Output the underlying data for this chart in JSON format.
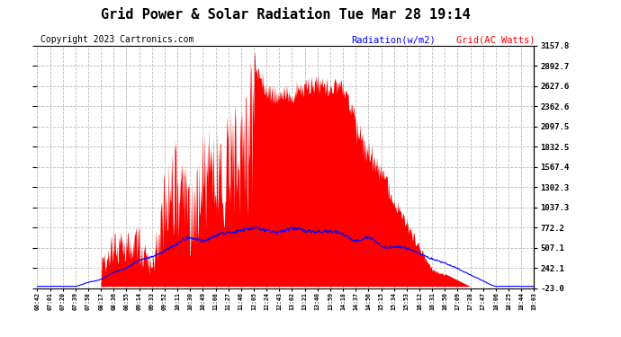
{
  "title": "Grid Power & Solar Radiation Tue Mar 28 19:14",
  "copyright": "Copyright 2023 Cartronics.com",
  "legend_radiation": "Radiation(w/m2)",
  "legend_grid": "Grid(AC Watts)",
  "yticks_right": [
    3157.8,
    2892.7,
    2627.6,
    2362.6,
    2097.5,
    1832.5,
    1567.4,
    1302.3,
    1037.3,
    772.2,
    507.1,
    242.1,
    -23.0
  ],
  "ymin": -23.0,
  "ymax": 3157.8,
  "background_color": "#ffffff",
  "grid_color": "#bbbbbb",
  "radiation_fill_color": "#ff0000",
  "radiation_line_color": "#0000ff",
  "title_fontsize": 11,
  "copyright_fontsize": 7,
  "xtick_labels": [
    "06:42",
    "07:01",
    "07:20",
    "07:39",
    "07:58",
    "08:17",
    "08:36",
    "08:55",
    "09:14",
    "09:33",
    "09:52",
    "10:11",
    "10:30",
    "10:49",
    "11:08",
    "11:27",
    "11:46",
    "12:05",
    "12:24",
    "12:43",
    "13:02",
    "13:21",
    "13:40",
    "13:59",
    "14:18",
    "14:37",
    "14:56",
    "15:15",
    "15:34",
    "15:53",
    "16:12",
    "16:31",
    "16:50",
    "17:09",
    "17:28",
    "17:47",
    "18:06",
    "18:25",
    "18:44",
    "19:03"
  ]
}
